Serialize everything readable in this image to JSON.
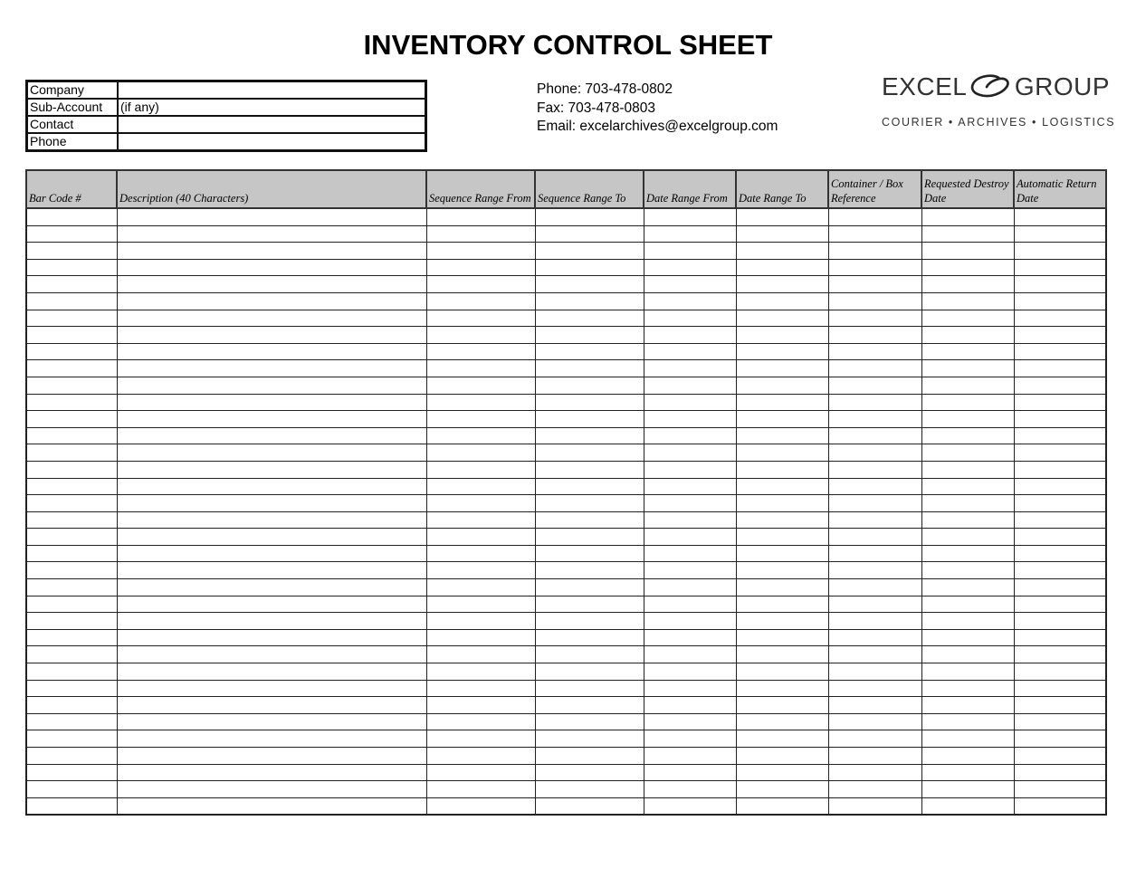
{
  "title": "INVENTORY CONTROL SHEET",
  "customer_info": [
    {
      "label": "Company",
      "value": ""
    },
    {
      "label": "Sub-Account",
      "value": "(if any)"
    },
    {
      "label": "Contact",
      "value": ""
    },
    {
      "label": "Phone",
      "value": ""
    }
  ],
  "contact": {
    "phone": "Phone:  703-478-0802",
    "fax": "Fax:  703-478-0803",
    "email": "Email: excelarchives@excelgroup.com"
  },
  "logo": {
    "left_word": "EXCEL",
    "right_word": "GROUP",
    "tagline": "COURIER • ARCHIVES • LOGISTICS"
  },
  "table": {
    "columns": [
      "Bar Code #",
      "Description (40 Characters)",
      "Sequence Range From",
      "Sequence Range To",
      "Date Range From",
      "Date Range To",
      "Container / Box Reference",
      "Requested Destroy Date",
      "Automatic Return Date"
    ],
    "empty_row_count": 36
  }
}
